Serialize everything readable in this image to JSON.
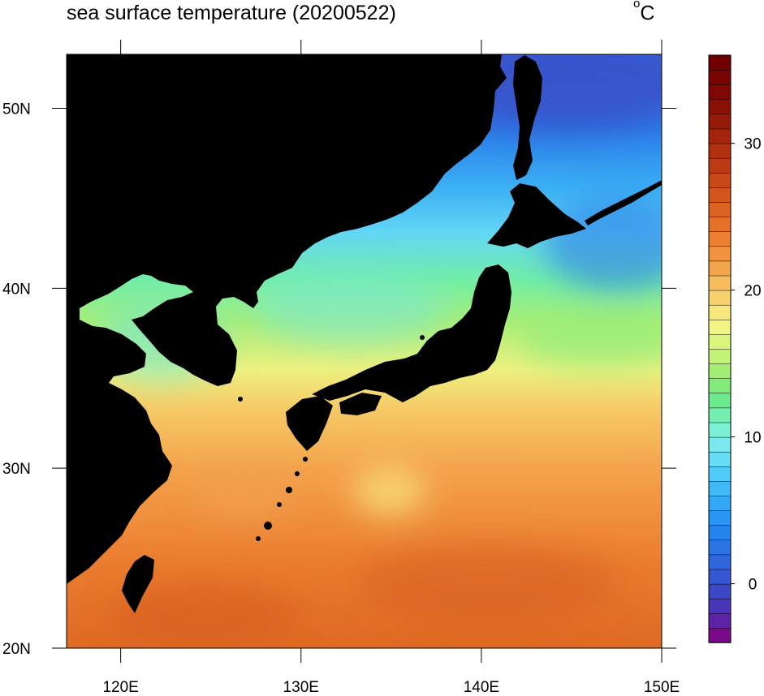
{
  "title": "sea surface temperature (20200522)",
  "units": {
    "degree": "o",
    "letter": "C"
  },
  "map": {
    "lon_range": [
      117,
      150
    ],
    "lat_range": [
      20,
      53
    ],
    "lon_ticks": [
      {
        "value": 120,
        "label": "120E"
      },
      {
        "value": 130,
        "label": "130E"
      },
      {
        "value": 140,
        "label": "140E"
      },
      {
        "value": 150,
        "label": "150E"
      }
    ],
    "lat_ticks": [
      {
        "value": 20,
        "label": "20N"
      },
      {
        "value": 30,
        "label": "30N"
      },
      {
        "value": 40,
        "label": "40N"
      },
      {
        "value": 50,
        "label": "50N"
      }
    ],
    "land_color": "#000000"
  },
  "colorbar": {
    "min": -4,
    "max": 36,
    "step": 1,
    "ticks": [
      {
        "value": 0,
        "label": "0"
      },
      {
        "value": 10,
        "label": "10"
      },
      {
        "value": 20,
        "label": "20"
      },
      {
        "value": 30,
        "label": "30"
      }
    ],
    "colors": [
      "#7a0a8a",
      "#5e22a8",
      "#4a34b8",
      "#3c47c6",
      "#3557d2",
      "#2f66dc",
      "#2a74e6",
      "#2583ee",
      "#2a95f2",
      "#33a8f4",
      "#40baf6",
      "#52cbf6",
      "#66dcf5",
      "#7be8ee",
      "#7af0d4",
      "#72efb0",
      "#6eea8e",
      "#82ea7a",
      "#a2ee74",
      "#c2f276",
      "#dcf57c",
      "#f1f585",
      "#f8e77f",
      "#f6d26e",
      "#f4bc5c",
      "#f2a64c",
      "#f0923e",
      "#ec8030",
      "#e57128",
      "#dc6422",
      "#d2551c",
      "#c84818",
      "#bd3b14",
      "#b03010",
      "#a3250c",
      "#961a08",
      "#8a1006",
      "#800804",
      "#780303",
      "#700000"
    ]
  }
}
